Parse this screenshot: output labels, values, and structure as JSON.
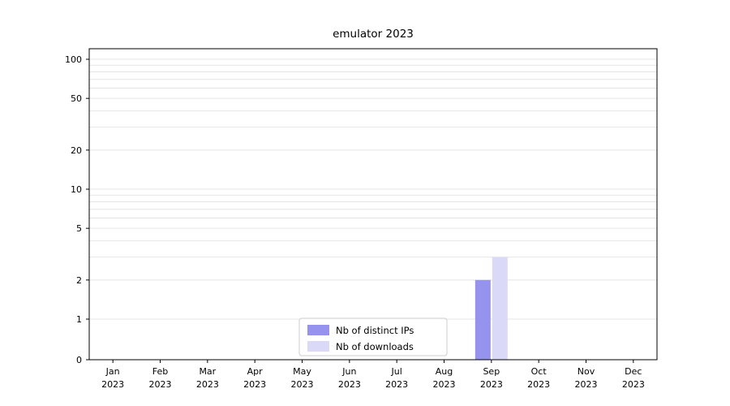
{
  "figure": {
    "background": "#ffffff"
  },
  "chart_data": {
    "type": "bar",
    "title": "emulator 2023",
    "categories": [
      "Jan",
      "Feb",
      "Mar",
      "Apr",
      "May",
      "Jun",
      "Jul",
      "Aug",
      "Sep",
      "Oct",
      "Nov",
      "Dec"
    ],
    "category_year": "2023",
    "series": [
      {
        "name": "Nb of distinct IPs",
        "color": "#9593ee",
        "values": [
          0,
          0,
          0,
          0,
          0,
          0,
          0,
          0,
          2,
          0,
          0,
          0
        ]
      },
      {
        "name": "Nb of downloads",
        "color": "#dadaf8",
        "values": [
          0,
          0,
          0,
          0,
          0,
          0,
          0,
          0,
          3,
          0,
          0,
          0
        ]
      }
    ],
    "yscale": "symlog",
    "y_ticks": [
      0,
      1,
      2,
      5,
      10,
      20,
      50,
      100
    ],
    "ylim": [
      0,
      120
    ],
    "grid": "horizontal-log-minor",
    "legend": {
      "position": "lower center"
    },
    "colors": {
      "grid": "#e4e4e4",
      "axis": "#000000",
      "legend_border": "#cccccc",
      "tick": "#000000"
    }
  }
}
